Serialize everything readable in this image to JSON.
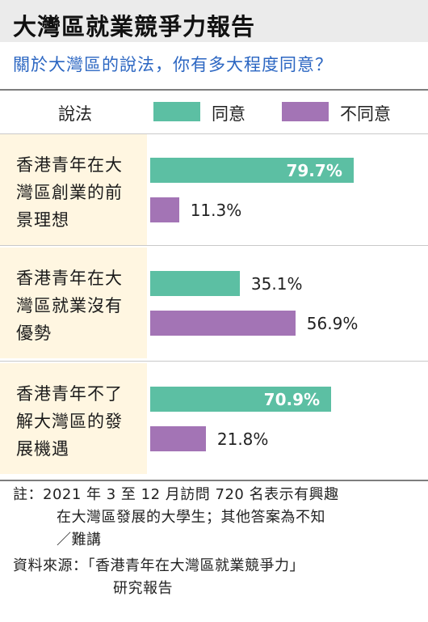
{
  "title": "大灣區就業競爭力報告",
  "question": "關於大灣區的說法，你有多大程度同意？",
  "colors": {
    "agree": "#5cbfa3",
    "disagree": "#a374b5",
    "label_bg": "#fff6e1",
    "question": "#2b66c2"
  },
  "chart_data": {
    "type": "bar",
    "orientation": "horizontal",
    "column_header": "說法",
    "categories": [
      [
        "香港青年在大",
        "灣區創業的前",
        "景理想"
      ],
      [
        "香港青年在大",
        "灣區就業沒有",
        "優勢"
      ],
      [
        "香港青年不了",
        "解大灣區的發",
        "展機遇"
      ]
    ],
    "series": [
      {
        "name": "同意",
        "values": [
          79.7,
          35.1,
          70.9
        ]
      },
      {
        "name": "不同意",
        "values": [
          11.3,
          56.9,
          21.8
        ]
      }
    ],
    "value_labels": {
      "同意": [
        "79.7%",
        "35.1%",
        "70.9%"
      ],
      "不同意": [
        "11.3%",
        "56.9%",
        "21.8%"
      ]
    },
    "unit": "%",
    "legend": "top"
  },
  "notes": {
    "note_lines": [
      "註：2021 年 3 至 12 月訪問 720 名表示有興趣",
      "在大灣區發展的大學生；其他答案為不知",
      "／難講"
    ],
    "source_lines": [
      "資料來源：「香港青年在大灣區就業競爭力」",
      "研究報告"
    ]
  }
}
